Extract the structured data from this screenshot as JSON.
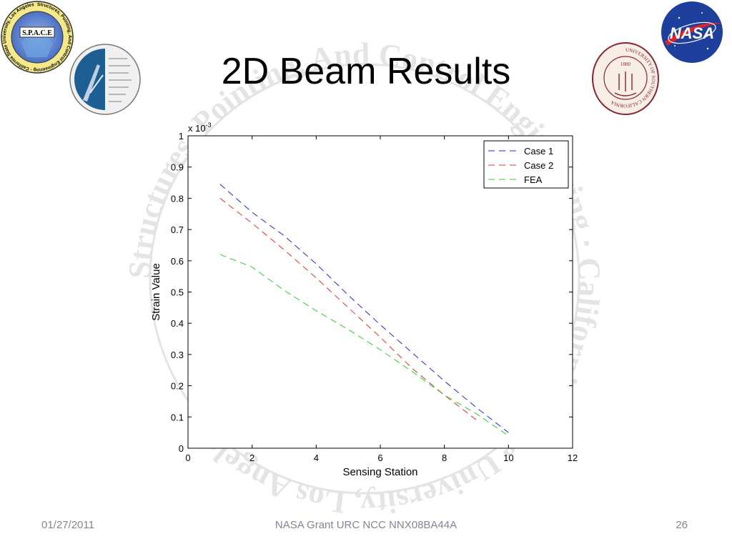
{
  "slide": {
    "title": "2D Beam Results",
    "footer": {
      "date": "01/27/2011",
      "grant": "NASA Grant URC NCC NNX08BA44A",
      "page": "26"
    }
  },
  "logos": {
    "space": {
      "text": "S.P.A.C.E",
      "ring_text": "Structures, Pointing, And Control Engineering · California State University, Los Angeles"
    },
    "nasa": {
      "text": "NASA"
    },
    "usc": {
      "ring_text": "UNIVERSITY OF SOUTHERN CALIFORNIA",
      "year": "1880"
    }
  },
  "watermark": {
    "text": "Structures, Pointing, And Control Engineering · California State University, Los Angeles"
  },
  "chart_data": {
    "type": "line",
    "title": "",
    "xlabel": "Sensing Station",
    "ylabel": "Strain Value",
    "y_multiplier": "x 10",
    "y_multiplier_exp": "-3",
    "xlim": [
      0,
      12
    ],
    "ylim": [
      0,
      1
    ],
    "x_ticks": [
      "0",
      "2",
      "4",
      "6",
      "8",
      "10",
      "12"
    ],
    "y_ticks": [
      "0",
      "0.1",
      "0.2",
      "0.3",
      "0.4",
      "0.5",
      "0.6",
      "0.7",
      "0.8",
      "0.9",
      "1"
    ],
    "grid": false,
    "legend_position": "top-right",
    "series": [
      {
        "name": "Case 1",
        "color": "#2424f0",
        "style": "dashed",
        "x": [
          1,
          2,
          3,
          4,
          5,
          6,
          7,
          8,
          9,
          10
        ],
        "y": [
          0.845,
          0.755,
          0.68,
          0.59,
          0.49,
          0.395,
          0.305,
          0.215,
          0.13,
          0.05
        ]
      },
      {
        "name": "Case 2",
        "color": "#f03030",
        "style": "dashed",
        "x": [
          1,
          2,
          3,
          4,
          5,
          6,
          7,
          8,
          9
        ],
        "y": [
          0.8,
          0.72,
          0.635,
          0.545,
          0.45,
          0.355,
          0.255,
          0.17,
          0.09
        ]
      },
      {
        "name": "FEA",
        "color": "#30d030",
        "style": "dashed",
        "x": [
          1,
          2,
          3,
          4,
          5,
          6,
          7,
          8,
          9,
          10
        ],
        "y": [
          0.62,
          0.58,
          0.505,
          0.44,
          0.38,
          0.315,
          0.245,
          0.17,
          0.11,
          0.04
        ]
      }
    ]
  }
}
